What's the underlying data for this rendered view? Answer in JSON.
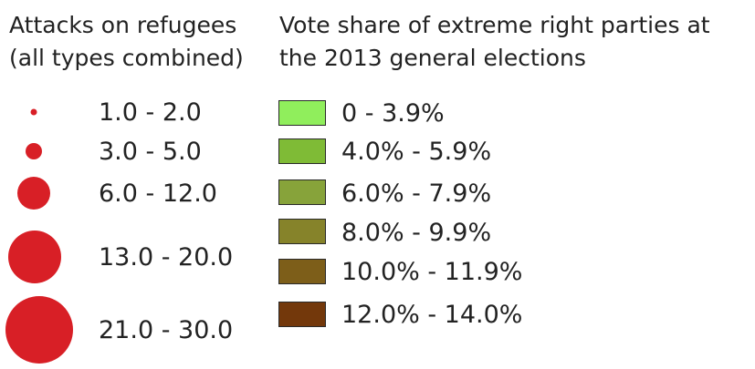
{
  "attacks_legend": {
    "title_line1": "Attacks on refugees",
    "title_line2": "(all types combined)",
    "symbol_color": "#d81f26",
    "classes": [
      {
        "label": "1.0 - 2.0"
      },
      {
        "label": "3.0 - 5.0"
      },
      {
        "label": "6.0 - 12.0"
      },
      {
        "label": "13.0 - 20.0"
      },
      {
        "label": "21.0 - 30.0"
      }
    ]
  },
  "vote_legend": {
    "title_line1": "Vote share of extreme right parties at",
    "title_line2": "the 2013 general elections",
    "classes": [
      {
        "label": "0 - 3.9%",
        "color": "#90ee5c"
      },
      {
        "label": "4.0% - 5.9%",
        "color": "#7fbb36"
      },
      {
        "label": "6.0% - 7.9%",
        "color": "#87a33a"
      },
      {
        "label": "8.0% - 9.9%",
        "color": "#86832a"
      },
      {
        "label": "10.0% - 11.9%",
        "color": "#7d5e19"
      },
      {
        "label": "12.0% - 14.0%",
        "color": "#73380b"
      }
    ]
  }
}
